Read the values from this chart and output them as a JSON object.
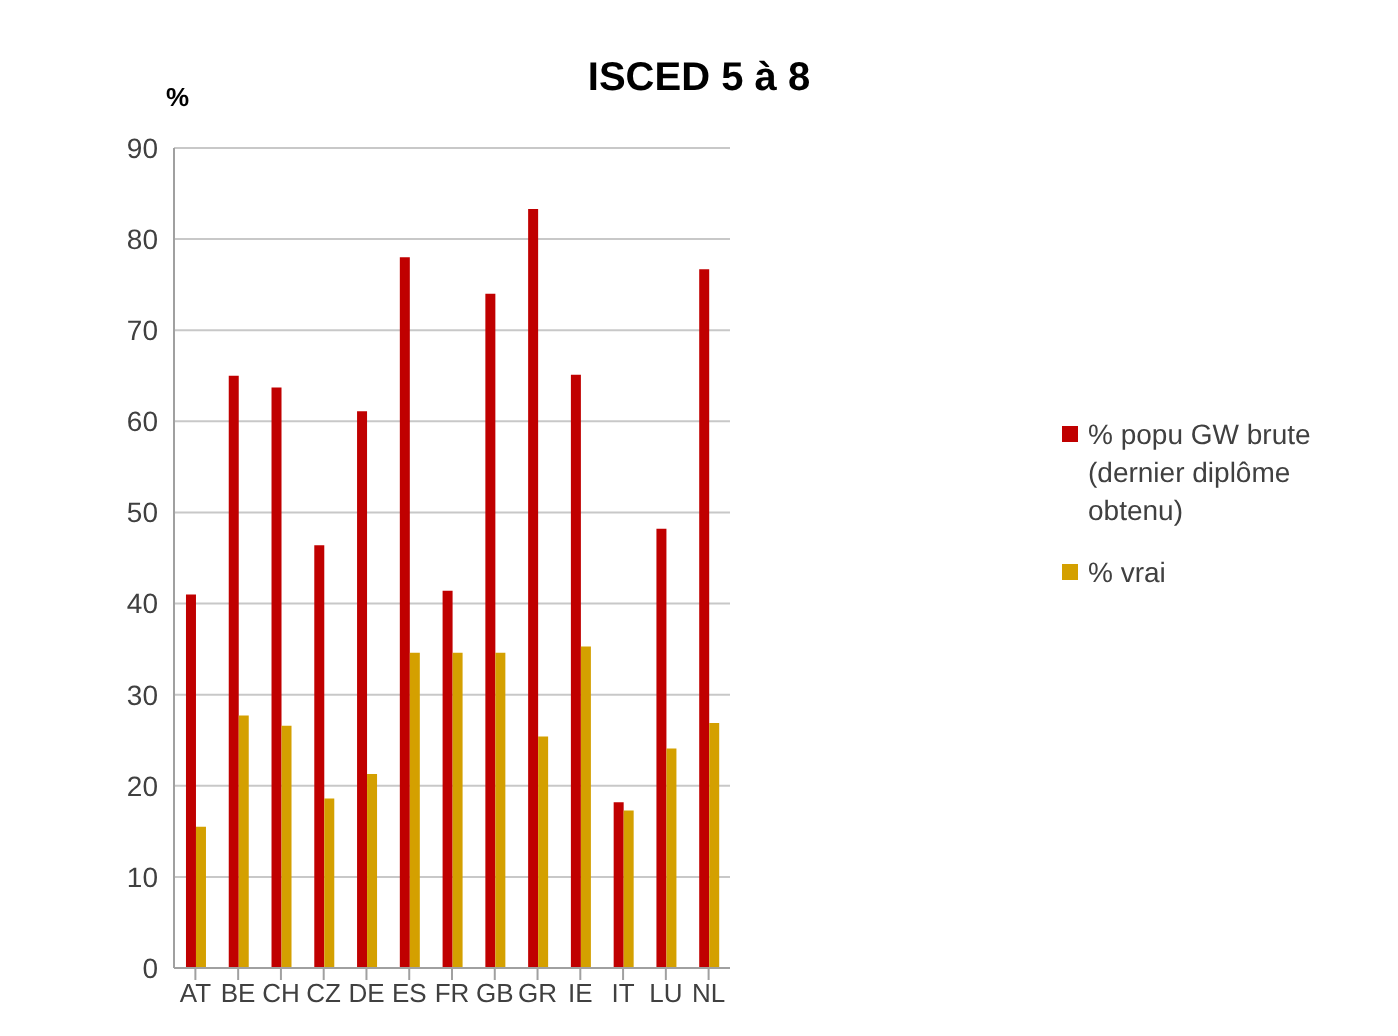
{
  "chart_data": {
    "type": "bar",
    "title": "ISCED 5 à 8",
    "ylabel": "%",
    "categories": [
      "AT",
      "BE",
      "CH",
      "CZ",
      "DE",
      "ES",
      "FR",
      "GB",
      "GR",
      "IE",
      "IT",
      "LU",
      "NL"
    ],
    "series": [
      {
        "name": "% popu GW brute (dernier diplôme obtenu)",
        "color": "#c00000",
        "values": [
          41,
          65,
          63.7,
          46.4,
          61.1,
          78,
          41.4,
          74,
          83.3,
          65.1,
          18.2,
          48.2,
          76.7
        ]
      },
      {
        "name": "% vrai",
        "color": "#d4a000",
        "values": [
          15.5,
          27.7,
          26.6,
          18.6,
          21.3,
          34.6,
          34.6,
          34.6,
          25.4,
          35.3,
          17.3,
          24.1,
          26.9
        ]
      }
    ],
    "ylim": [
      0,
      90
    ],
    "yticks": [
      0,
      10,
      20,
      30,
      40,
      50,
      60,
      70,
      80,
      90
    ],
    "grid": "y",
    "legend": "right"
  }
}
